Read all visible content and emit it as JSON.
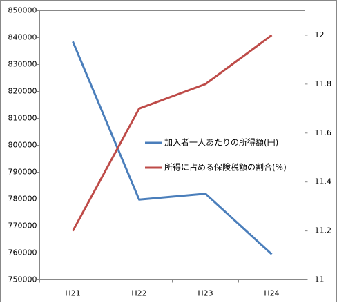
{
  "chart_data": {
    "type": "line",
    "categories": [
      "H21",
      "H22",
      "H23",
      "H24"
    ],
    "series": [
      {
        "name": "加入者一人あたりの所得額(円)",
        "color": "#4a7ebb",
        "values": [
          838500,
          779800,
          782000,
          759500
        ]
      },
      {
        "name": "所得に占める保険税額の割合(%)",
        "color": "#be4b48",
        "axis": "y2",
        "values": [
          11.2,
          11.7,
          11.8,
          12.0
        ]
      }
    ],
    "ylim": [
      750000,
      850000
    ],
    "yticks": [
      750000,
      760000,
      770000,
      780000,
      790000,
      800000,
      810000,
      820000,
      830000,
      840000,
      850000
    ],
    "y2lim": [
      11,
      12.1
    ],
    "y2ticks": [
      11,
      11.2,
      11.4,
      11.6,
      11.8,
      12
    ],
    "grid": false,
    "legend": "right"
  }
}
